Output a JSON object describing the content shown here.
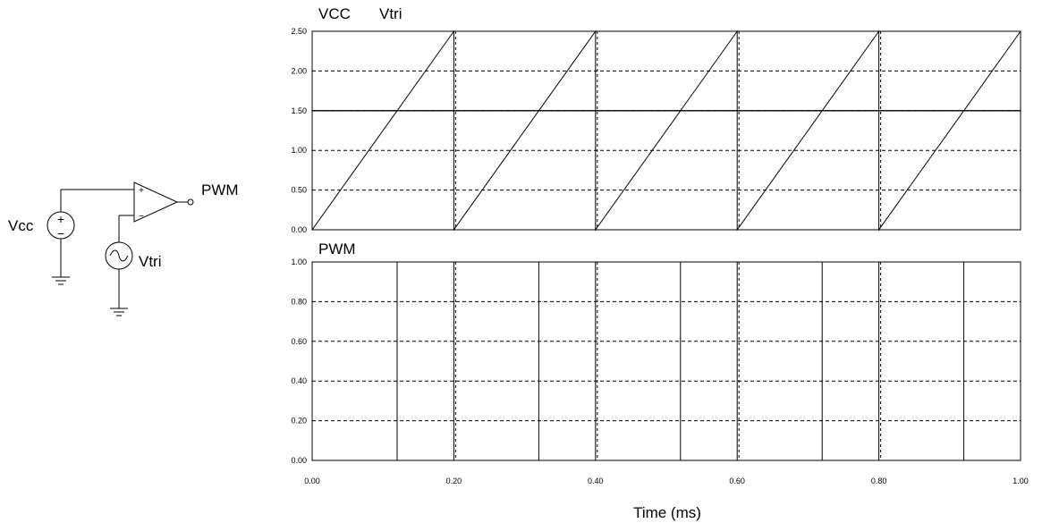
{
  "schematic": {
    "vcc_label": "Vcc",
    "vtri_label": "Vtri",
    "pwm_label": "PWM",
    "plus_sign": "+",
    "minus_sign": "−",
    "src_plus": "+",
    "src_minus": "−"
  },
  "chart_data": [
    {
      "type": "line",
      "series": [
        {
          "name": "VCC",
          "kind": "constant",
          "x": [
            0.0,
            1.0
          ],
          "y": [
            1.5,
            1.5
          ]
        },
        {
          "name": "Vtri",
          "kind": "sawtooth",
          "x": [
            0.0,
            0.2,
            0.2,
            0.4,
            0.4,
            0.6,
            0.6,
            0.8,
            0.8,
            1.0
          ],
          "y": [
            0.0,
            2.5,
            0.0,
            2.5,
            0.0,
            2.5,
            0.0,
            2.5,
            0.0,
            2.5
          ]
        }
      ],
      "ylim": [
        0,
        2.5
      ],
      "yticks": [
        "0.00",
        "0.50",
        "1.00",
        "1.50",
        "2.00",
        "2.50"
      ],
      "xlim": [
        0,
        1.0
      ],
      "grid": true
    },
    {
      "type": "line",
      "series": [
        {
          "name": "PWM",
          "x": [
            0.0,
            0.12,
            0.12,
            0.2,
            0.2,
            0.32,
            0.32,
            0.4,
            0.4,
            0.52,
            0.52,
            0.6,
            0.6,
            0.72,
            0.72,
            0.8,
            0.8,
            0.92,
            0.92,
            1.0
          ],
          "y": [
            1.0,
            1.0,
            0.0,
            0.0,
            1.0,
            1.0,
            0.0,
            0.0,
            1.0,
            1.0,
            0.0,
            0.0,
            1.0,
            1.0,
            0.0,
            0.0,
            1.0,
            1.0,
            0.0,
            0.0
          ]
        }
      ],
      "ylim": [
        0,
        1.0
      ],
      "yticks": [
        "0.00",
        "0.20",
        "0.40",
        "0.60",
        "0.80",
        "1.00"
      ],
      "xlim": [
        0,
        1.0
      ],
      "xticks": [
        "0.00",
        "0.20",
        "0.40",
        "0.60",
        "0.80",
        "1.00"
      ],
      "xlabel": "Time (ms)",
      "grid": true
    }
  ]
}
